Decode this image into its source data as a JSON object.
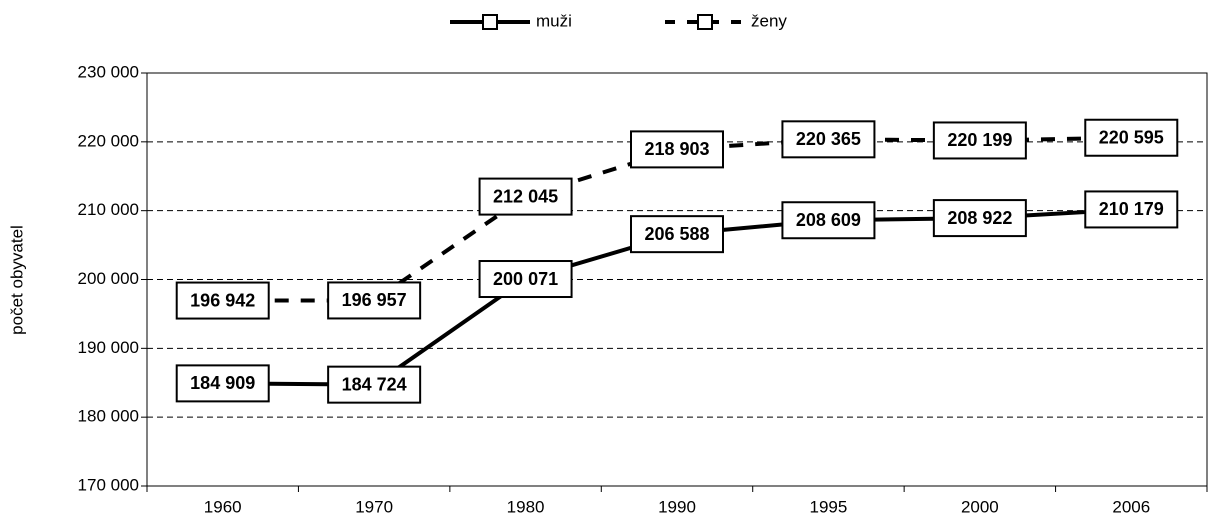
{
  "chart_data": {
    "type": "line",
    "y_label": "počet obyvatel",
    "categories": [
      "1960",
      "1970",
      "1980",
      "1990",
      "1995",
      "2000",
      "2006"
    ],
    "series": [
      {
        "name": "muži",
        "color": "#000000",
        "style": "solid",
        "values": [
          184909,
          184724,
          200071,
          206588,
          208609,
          208922,
          210179
        ],
        "value_labels": [
          "184 909",
          "184 724",
          "200 071",
          "206 588",
          "208 609",
          "208 922",
          "210 179"
        ]
      },
      {
        "name": "ženy",
        "color": "#000000",
        "style": "dashed",
        "values": [
          196942,
          196957,
          212045,
          218903,
          220365,
          220199,
          220595
        ],
        "value_labels": [
          "196 942",
          "196 957",
          "212 045",
          "218 903",
          "220 365",
          "220 199",
          "220 595"
        ]
      }
    ],
    "ylim": [
      170000,
      230000
    ],
    "yticks": [
      {
        "value": 170000,
        "label": "170 000"
      },
      {
        "value": 180000,
        "label": "180 000"
      },
      {
        "value": 190000,
        "label": "190 000"
      },
      {
        "value": 200000,
        "label": "200 000"
      },
      {
        "value": 210000,
        "label": "210 000"
      },
      {
        "value": 220000,
        "label": "220 000"
      },
      {
        "value": 230000,
        "label": "230 000"
      }
    ],
    "grid": true,
    "legend": "top"
  }
}
